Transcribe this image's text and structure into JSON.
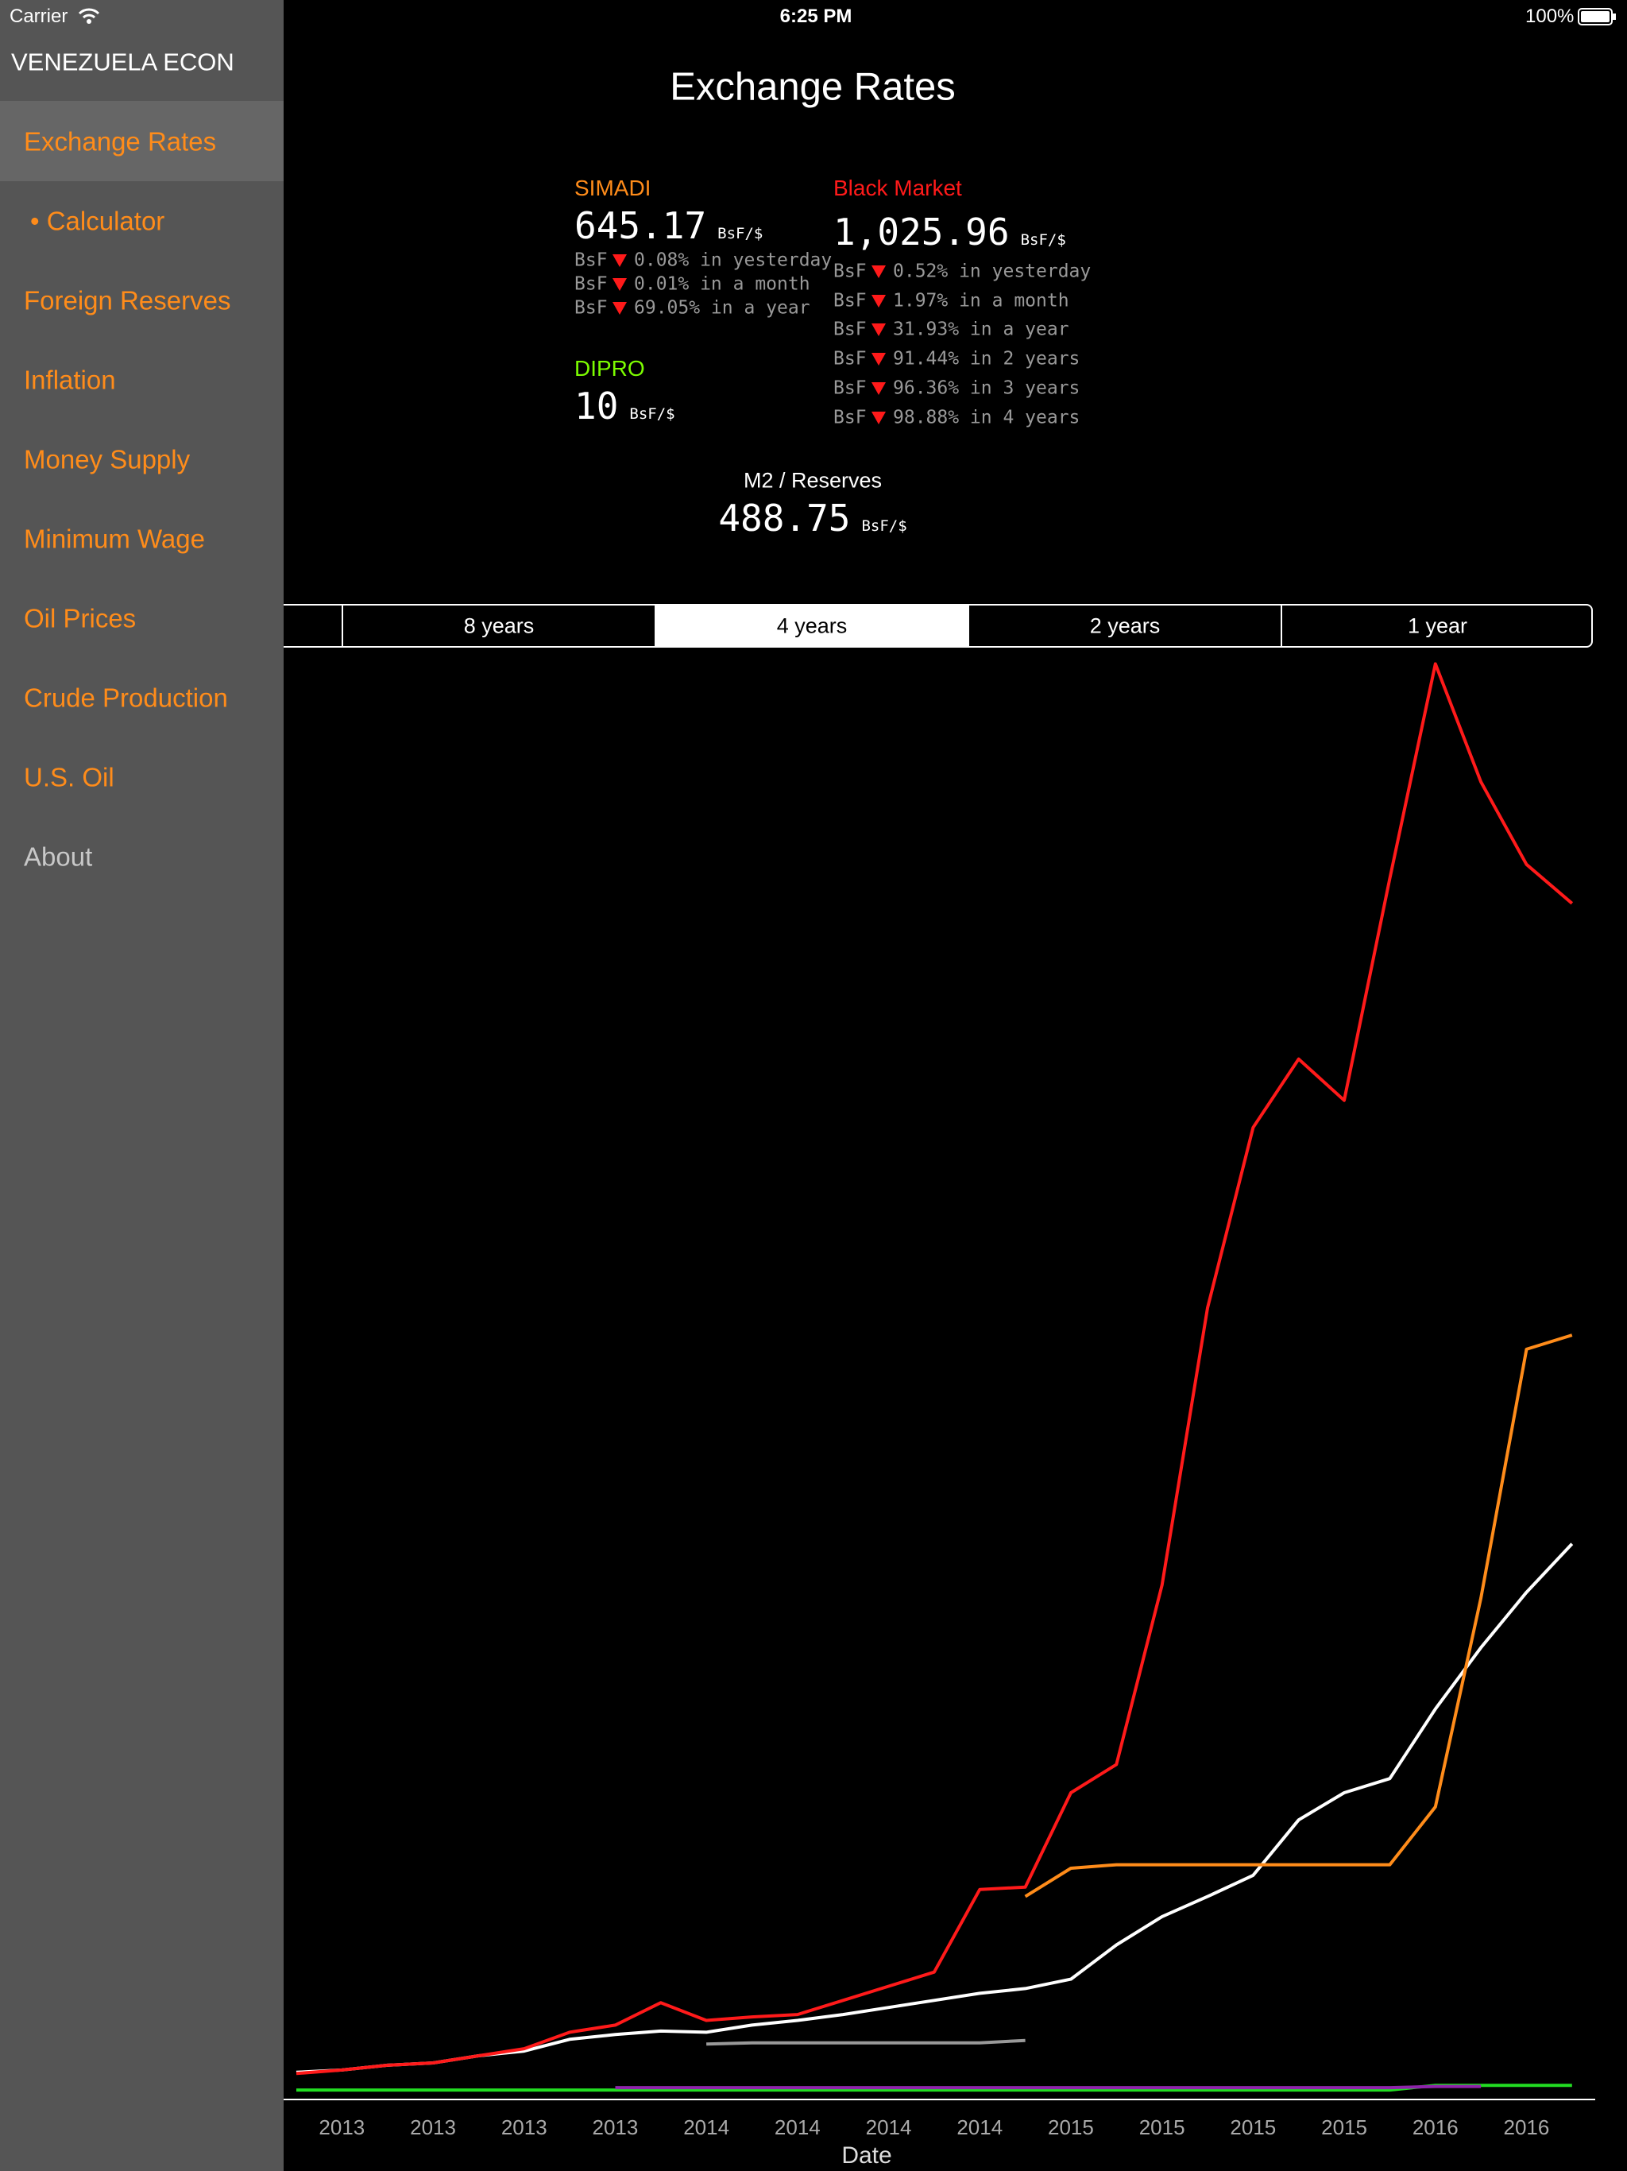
{
  "status_bar": {
    "carrier": "Carrier",
    "time": "6:25 PM",
    "battery": "100%"
  },
  "sidebar": {
    "title": "VENEZUELA ECON",
    "items": [
      "Exchange Rates",
      "• Calculator",
      "Foreign Reserves",
      "Inflation",
      "Money Supply",
      "Minimum Wage",
      "Oil Prices",
      "Crude Production",
      "U.S. Oil",
      "About"
    ]
  },
  "header": {
    "title": "Exchange Rates"
  },
  "rates": {
    "simadi": {
      "label": "SIMADI",
      "value": "645.17",
      "unit": "BsF/$",
      "changes": [
        {
          "currency": "BsF",
          "text": "0.08% in yesterday"
        },
        {
          "currency": "BsF",
          "text": "0.01% in a month"
        },
        {
          "currency": "BsF",
          "text": "69.05% in a year"
        }
      ]
    },
    "black_market": {
      "label": "Black Market",
      "value": "1,025.96",
      "unit": "BsF/$",
      "changes": [
        {
          "currency": "BsF",
          "text": "0.52% in yesterday"
        },
        {
          "currency": "BsF",
          "text": "1.97% in a month"
        },
        {
          "currency": "BsF",
          "text": "31.93% in a year"
        },
        {
          "currency": "BsF",
          "text": "91.44% in 2 years"
        },
        {
          "currency": "BsF",
          "text": "96.36% in 3 years"
        },
        {
          "currency": "BsF",
          "text": "98.88% in 4 years"
        }
      ]
    },
    "dipro": {
      "label": "DIPRO",
      "value": "10",
      "unit": "BsF/$"
    },
    "m2_reserves": {
      "label": "M2 / Reserves",
      "value": "488.75",
      "unit": "BsF/$"
    }
  },
  "segments": {
    "options": [
      "8 years",
      "4 years",
      "2 years",
      "1 year"
    ]
  },
  "chart_data": {
    "type": "line",
    "xlabel": "Date",
    "categories": [
      null,
      "2013",
      null,
      "2013",
      null,
      "2013",
      null,
      "2013",
      null,
      "2014",
      null,
      "2014",
      null,
      "2014",
      null,
      "2014",
      null,
      "2015",
      null,
      "2015",
      null,
      "2015",
      null,
      "2015",
      null,
      "2016",
      null,
      "2016",
      null
    ],
    "ylim": [
      0,
      1220
    ],
    "series": [
      {
        "color": "#22dd22",
        "values": [
          6,
          6,
          6,
          6,
          6,
          6,
          6,
          6,
          6,
          6,
          6,
          6,
          6,
          6,
          6,
          6,
          6,
          6,
          6,
          6,
          6,
          6,
          6,
          6,
          6,
          10,
          10,
          10,
          10
        ]
      },
      {
        "color": "#8e24aa",
        "values": [
          null,
          null,
          null,
          null,
          null,
          null,
          null,
          8,
          8,
          8,
          8,
          8,
          8,
          8,
          8,
          8,
          8,
          8,
          8,
          8,
          8,
          8,
          8,
          8,
          8,
          9,
          9,
          null,
          null
        ]
      },
      {
        "color": "#999999",
        "values": [
          null,
          null,
          null,
          null,
          null,
          null,
          null,
          null,
          null,
          45,
          46,
          46,
          46,
          46,
          46,
          46,
          48,
          null,
          null,
          null,
          null,
          null,
          null,
          null,
          null,
          null,
          null,
          null,
          null
        ]
      },
      {
        "color": "#ffffff",
        "values": [
          21,
          23,
          27,
          29,
          35,
          39,
          49,
          53,
          56,
          55,
          61,
          65,
          70,
          76,
          82,
          88,
          92,
          100,
          129,
          153,
          170,
          188,
          235,
          258,
          270,
          329,
          381,
          428,
          469
        ]
      },
      {
        "color": "#ff8c1a",
        "values": [
          null,
          null,
          null,
          null,
          null,
          null,
          null,
          null,
          null,
          null,
          null,
          null,
          null,
          null,
          null,
          null,
          170,
          194,
          197,
          197,
          197,
          197,
          197,
          197,
          197,
          246,
          423,
          634,
          646
        ]
      },
      {
        "color": "#ff1a1a",
        "values": [
          20,
          23,
          27,
          29,
          35,
          41,
          55,
          61,
          80,
          65,
          68,
          70,
          82,
          94,
          106,
          176,
          178,
          258,
          282,
          434,
          669,
          822,
          880,
          845,
          1033,
          1215,
          1115,
          1045,
          1012
        ]
      }
    ]
  }
}
